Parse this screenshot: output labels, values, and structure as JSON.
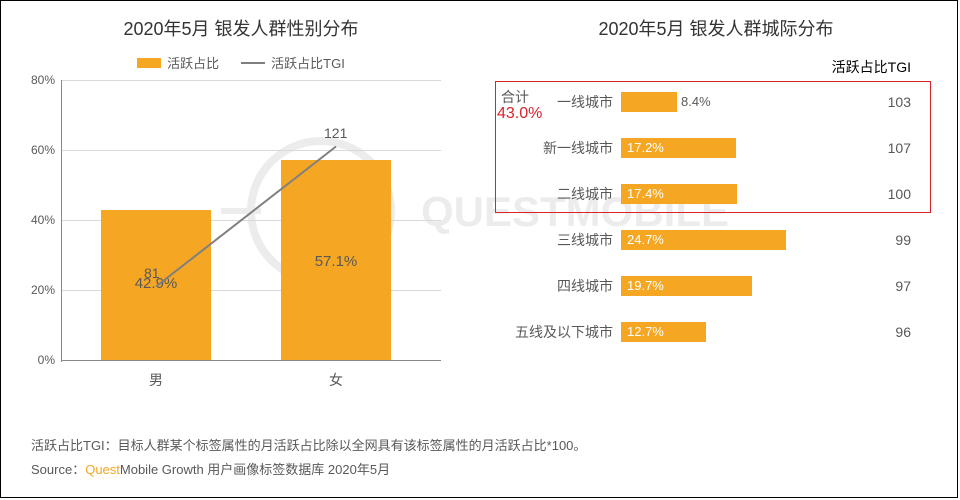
{
  "colors": {
    "bar": "#f5a623",
    "line": "#7f7f7f",
    "text": "#595959",
    "highlight": "#d8232a",
    "grid": "#d9d9d9",
    "bg": "#ffffff"
  },
  "left_chart": {
    "title": "2020年5月 银发人群性别分布",
    "legend_bar": "活跃占比",
    "legend_line": "活跃占比TGI",
    "y_ticks": [
      "0%",
      "20%",
      "40%",
      "60%",
      "80%"
    ],
    "ylim_max": 80,
    "categories": [
      "男",
      "女"
    ],
    "bar_values_pct": [
      42.9,
      57.1
    ],
    "bar_labels": [
      "42.9%",
      "57.1%"
    ],
    "tgi_values": [
      81,
      121
    ],
    "tgi_labels": [
      "81",
      "121"
    ]
  },
  "right_chart": {
    "title": "2020年5月 银发人群城际分布",
    "tgi_header": "活跃占比TGI",
    "sum_label": "合计",
    "sum_value": "43.0%",
    "max_pct": 30,
    "rows": [
      {
        "cat": "一线城市",
        "pct": 8.4,
        "pct_label": "8.4%",
        "tgi": "103"
      },
      {
        "cat": "新一线城市",
        "pct": 17.2,
        "pct_label": "17.2%",
        "tgi": "107"
      },
      {
        "cat": "二线城市",
        "pct": 17.4,
        "pct_label": "17.4%",
        "tgi": "100"
      },
      {
        "cat": "三线城市",
        "pct": 24.7,
        "pct_label": "24.7%",
        "tgi": "99"
      },
      {
        "cat": "四线城市",
        "pct": 19.7,
        "pct_label": "19.7%",
        "tgi": "97"
      },
      {
        "cat": "五线及以下城市",
        "pct": 12.7,
        "pct_label": "12.7%",
        "tgi": "96"
      }
    ]
  },
  "footer": {
    "note": "活跃占比TGI：目标人群某个标签属性的月活跃占比除以全网具有该标签属性的月活跃占比*100。",
    "source_prefix": "Source：",
    "brand1": "Quest",
    "brand2": "Mobile",
    "source_suffix": " Growth 用户画像标签数据库 2020年5月"
  }
}
